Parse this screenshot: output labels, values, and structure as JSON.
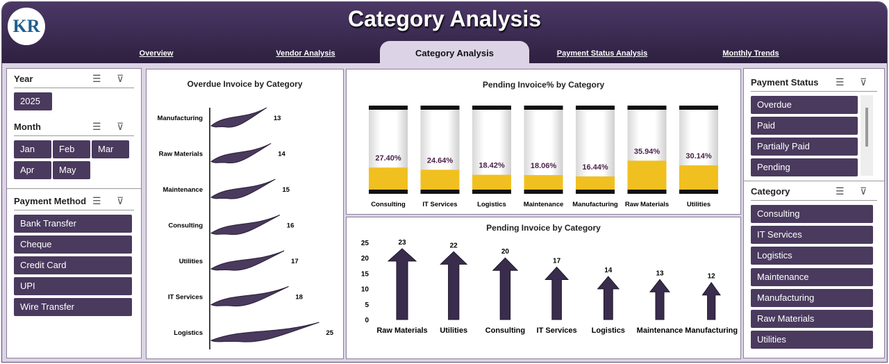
{
  "header": {
    "title": "Category Analysis",
    "logo_text": "KR",
    "tabs": [
      {
        "label": "Overview"
      },
      {
        "label": "Vendor Analysis"
      },
      {
        "label": "Category Analysis",
        "active": true
      },
      {
        "label": "Payment Status Analysis"
      },
      {
        "label": "Monthly Trends"
      }
    ]
  },
  "colors": {
    "header": "#3b2a52",
    "slicer_button": "#4a3a5e",
    "fill": "#f0c020",
    "arrow": "#3a2c4c",
    "background": "#dcd4e6"
  },
  "slicers": {
    "year": {
      "title": "Year",
      "items": [
        "2025"
      ]
    },
    "month": {
      "title": "Month",
      "items": [
        "Jan",
        "Feb",
        "Mar",
        "Apr",
        "May"
      ]
    },
    "payment_method": {
      "title": "Payment Method",
      "items": [
        "Bank Transfer",
        "Cheque",
        "Credit Card",
        "UPI",
        "Wire Transfer"
      ]
    },
    "payment_status": {
      "title": "Payment Status",
      "items": [
        "Overdue",
        "Paid",
        "Partially Paid",
        "Pending"
      ]
    },
    "category": {
      "title": "Category",
      "items": [
        "Consulting",
        "IT Services",
        "Logistics",
        "Maintenance",
        "Manufacturing",
        "Raw Materials",
        "Utilities"
      ]
    }
  },
  "chart_data": [
    {
      "type": "bar",
      "orientation": "horizontal",
      "title": "Overdue Invoice by Category",
      "categories": [
        "Manufacturing",
        "Raw Materials",
        "Maintenance",
        "Consulting",
        "Utilities",
        "IT Services",
        "Logistics"
      ],
      "values": [
        13,
        14,
        15,
        16,
        17,
        18,
        25
      ]
    },
    {
      "type": "bar",
      "title": "Pending Invoice% by Category",
      "categories": [
        "Consulting",
        "IT Services",
        "Logistics",
        "Maintenance",
        "Manufacturing",
        "Raw Materials",
        "Utilities"
      ],
      "values": [
        27.4,
        24.64,
        18.42,
        18.06,
        16.44,
        35.94,
        30.14
      ],
      "labels": [
        "27.40%",
        "24.64%",
        "18.42%",
        "18.06%",
        "16.44%",
        "35.94%",
        "30.14%"
      ],
      "ylim": [
        0,
        100
      ]
    },
    {
      "type": "bar",
      "title": "Pending Invoice by Category",
      "categories": [
        "Raw Materials",
        "Utilities",
        "Consulting",
        "IT Services",
        "Logistics",
        "Maintenance",
        "Manufacturing"
      ],
      "values": [
        23,
        22,
        20,
        17,
        14,
        13,
        12
      ],
      "ylim": [
        0,
        25
      ],
      "yticks": [
        "0",
        "5",
        "10",
        "15",
        "20",
        "25"
      ]
    }
  ]
}
